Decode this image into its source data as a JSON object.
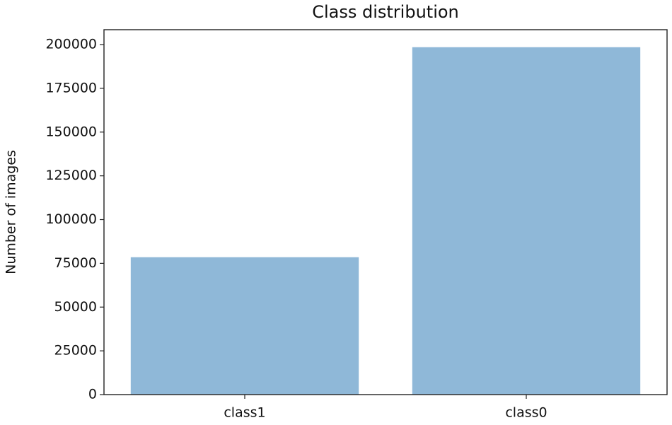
{
  "chart_data": {
    "type": "bar",
    "title": "Class distribution",
    "ylabel": "Number of images",
    "categories": [
      "class1",
      "class0"
    ],
    "values": [
      78500,
      198500
    ],
    "color": "#8fb8d8",
    "ylim": [
      0,
      208500
    ],
    "yticks": [
      0,
      25000,
      50000,
      75000,
      100000,
      125000,
      150000,
      175000,
      200000
    ]
  }
}
